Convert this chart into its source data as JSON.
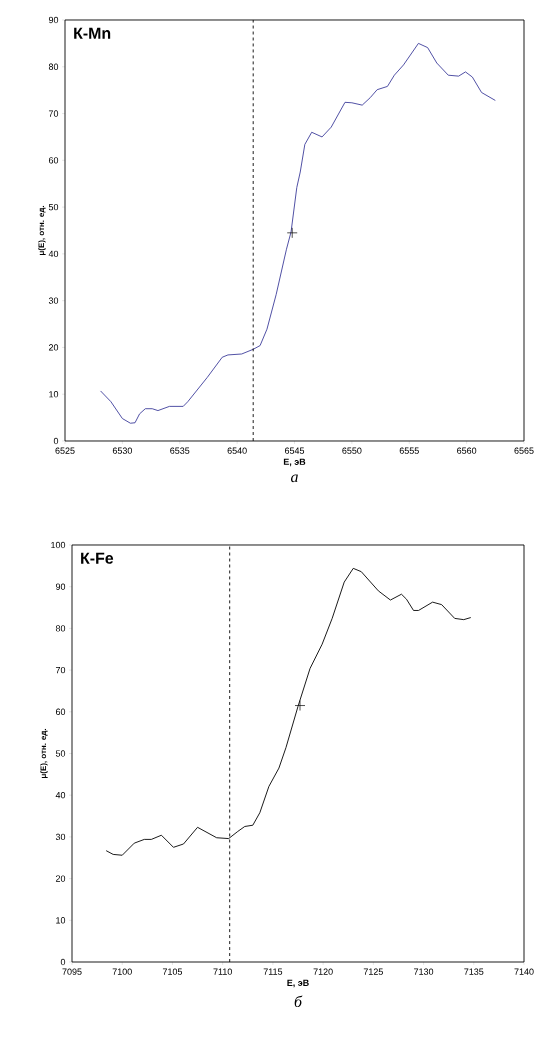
{
  "chart_data": [
    {
      "type": "line",
      "title": "К-Mn",
      "xlabel": "E, эВ",
      "ylabel": "μ(E), отн. ед.",
      "annotations": [
        "а"
      ],
      "xlim": [
        6525,
        6565
      ],
      "ylim": [
        0,
        90
      ],
      "xticks": [
        6525,
        6530,
        6535,
        6540,
        6545,
        6550,
        6555,
        6560,
        6565
      ],
      "yticks": [
        0,
        10,
        20,
        30,
        40,
        50,
        60,
        70,
        80,
        90
      ],
      "grid": false,
      "ref_lines": [
        {
          "axis": "x",
          "value": 6541.4,
          "line_style": "dashed",
          "color": "#000000"
        }
      ],
      "series": [
        {
          "color": "#3c3c9a",
          "marker": "none",
          "x": [
            6528.1,
            6529.0,
            6530.0,
            6530.7,
            6531.1,
            6531.5,
            6532.0,
            6532.6,
            6533.1,
            6534.1,
            6535.3,
            6535.7,
            6537.4,
            6538.7,
            6539.2,
            6540.4,
            6541.4,
            6542.0,
            6542.6,
            6543.4,
            6544.3,
            6544.7,
            6545.2,
            6545.5,
            6545.9,
            6546.5,
            6547.4,
            6548.2,
            6549.4,
            6550.0,
            6550.9,
            6551.6,
            6552.2,
            6553.1,
            6553.7,
            6554.5,
            6555.8,
            6556.6,
            6557.4,
            6558.4,
            6559.3,
            6559.9,
            6560.5,
            6561.3,
            6562.5
          ],
          "values": [
            10.7,
            8.4,
            4.8,
            3.8,
            3.9,
            5.8,
            6.9,
            6.9,
            6.5,
            7.4,
            7.4,
            8.4,
            13.6,
            17.9,
            18.4,
            18.6,
            19.6,
            20.4,
            23.9,
            31.3,
            41,
            44.7,
            54.2,
            57.5,
            63.4,
            66.0,
            65.0,
            67.1,
            72.4,
            72.3,
            71.8,
            73.4,
            75.1,
            75.8,
            78.2,
            80.4,
            85.0,
            84.1,
            80.8,
            78.2,
            78.0,
            78.9,
            77.8,
            74.5,
            72.8
          ]
        },
        {
          "type": "scatter",
          "color": "#000000",
          "marker": "cross",
          "x": [
            6544.8
          ],
          "values": [
            44.5
          ]
        }
      ]
    },
    {
      "type": "line",
      "title": "К-Fe",
      "xlabel": "E, эВ",
      "ylabel": "μ(E), отн. ед.",
      "annotations": [
        "б"
      ],
      "xlim": [
        7095,
        7140
      ],
      "ylim": [
        0,
        100
      ],
      "xticks": [
        7095,
        7100,
        7105,
        7110,
        7115,
        7120,
        7125,
        7130,
        7135,
        7140
      ],
      "yticks": [
        0,
        10,
        20,
        30,
        40,
        50,
        60,
        70,
        80,
        90,
        100
      ],
      "grid": false,
      "ref_lines": [
        {
          "axis": "x",
          "value": 7110.7,
          "line_style": "dashed",
          "color": "#000000"
        }
      ],
      "series": [
        {
          "color": "#000000",
          "marker": "none",
          "x": [
            7098.4,
            7099.1,
            7100.0,
            7101.2,
            7102.2,
            7102.9,
            7103.9,
            7105.1,
            7106.1,
            7107.5,
            7109.4,
            7110.6,
            7111.5,
            7112.2,
            7113.0,
            7113.7,
            7114.6,
            7115.6,
            7116.3,
            7117.5,
            7118.7,
            7119.9,
            7120.9,
            7122.1,
            7123.0,
            7123.8,
            7125.5,
            7126.7,
            7127.8,
            7128.3,
            7129.0,
            7129.5,
            7130.9,
            7131.8,
            7133.1,
            7134.0,
            7134.7
          ],
          "values": [
            26.7,
            25.8,
            25.6,
            28.5,
            29.4,
            29.4,
            30.4,
            27.5,
            28.3,
            32.3,
            29.8,
            29.6,
            31.3,
            32.5,
            32.8,
            35.8,
            42.1,
            46.5,
            51.4,
            61.3,
            70.4,
            76.2,
            82.4,
            91.1,
            94.4,
            93.6,
            89.0,
            86.8,
            88.2,
            87.0,
            84.3,
            84.3,
            86.3,
            85.7,
            82.4,
            82.1,
            82.6
          ]
        },
        {
          "type": "scatter",
          "color": "#000000",
          "marker": "cross",
          "x": [
            7117.7
          ],
          "values": [
            61.5
          ]
        }
      ]
    }
  ]
}
